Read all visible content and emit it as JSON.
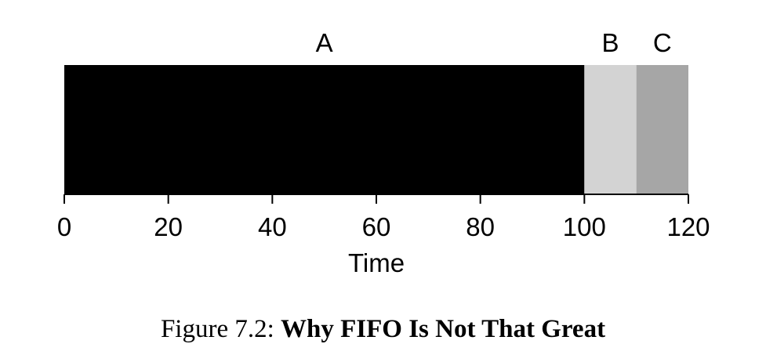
{
  "chart_data": {
    "type": "bar",
    "orientation": "horizontal-timeline",
    "xlabel": "Time",
    "xlim": [
      0,
      120
    ],
    "xticks": [
      0,
      20,
      40,
      60,
      80,
      100,
      120
    ],
    "grid": false,
    "legend": "none",
    "segments": [
      {
        "label": "A",
        "start": 0,
        "end": 100,
        "color": "#000000"
      },
      {
        "label": "B",
        "start": 100,
        "end": 110,
        "color": "#d3d3d3"
      },
      {
        "label": "C",
        "start": 110,
        "end": 120,
        "color": "#a6a6a6"
      }
    ]
  },
  "caption": {
    "prefix": "Figure 7.2:",
    "title": "Why FIFO Is Not That Great"
  }
}
